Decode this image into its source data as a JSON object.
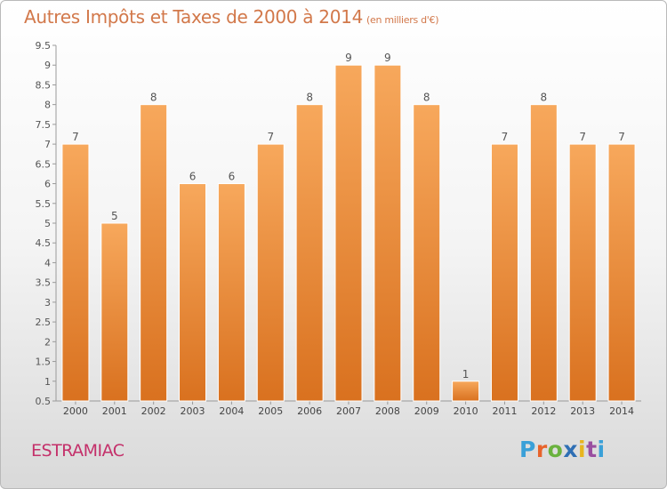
{
  "header": {
    "title": "Autres Impôts et Taxes de 2000 à 2014",
    "subtitle": "(en milliers d'€)"
  },
  "footer": {
    "town": "ESTRAMIAC",
    "brand": "Proxiti",
    "brand_colors": [
      "#3aa0d8",
      "#e8632b",
      "#6ab23e",
      "#2f6fb4",
      "#e8b51e",
      "#9a4fa0",
      "#3aa0d8"
    ]
  },
  "chart_data": {
    "type": "bar",
    "title": "Autres Impôts et Taxes de 2000 à 2014",
    "subtitle": "(en milliers d'€)",
    "categories": [
      "2000",
      "2001",
      "2002",
      "2003",
      "2004",
      "2005",
      "2006",
      "2007",
      "2008",
      "2009",
      "2010",
      "2011",
      "2012",
      "2013",
      "2014"
    ],
    "values": [
      7,
      5,
      8,
      6,
      6,
      7,
      8,
      9,
      9,
      8,
      1,
      7,
      8,
      7,
      7
    ],
    "data_labels": [
      "7",
      "5",
      "8",
      "6",
      "6",
      "7",
      "8",
      "9",
      "9",
      "8",
      "1",
      "7",
      "8",
      "7",
      "7"
    ],
    "ylim": [
      0.5,
      9.5
    ],
    "yticks": [
      "0.5",
      "1",
      "1.5",
      "2",
      "2.5",
      "3",
      "3.5",
      "4",
      "4.5",
      "5",
      "5.5",
      "6",
      "6.5",
      "7",
      "7.5",
      "8",
      "8.5",
      "9",
      "9.5"
    ],
    "grid": false,
    "bar_color_top": "#f7a85c",
    "bar_color_bottom": "#d9711f"
  }
}
